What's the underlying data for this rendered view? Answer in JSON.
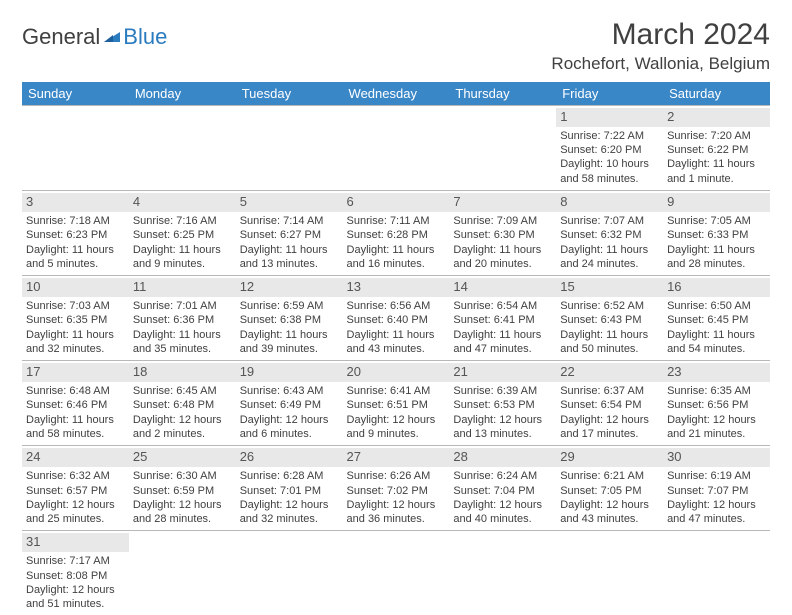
{
  "logo": {
    "part1": "General",
    "part2": "Blue"
  },
  "title": "March 2024",
  "subtitle": "Rochefort, Wallonia, Belgium",
  "styling": {
    "header_bg": "#3a87c8",
    "header_text": "#ffffff",
    "daynum_bg": "#e8e8e8",
    "cell_border": "#b8b8b8",
    "body_text": "#404040",
    "logo_accent": "#2b7bbf",
    "title_fontsize": 30,
    "subtitle_fontsize": 17,
    "cell_fontsize": 11,
    "daynum_fontsize": 13
  },
  "day_headers": [
    "Sunday",
    "Monday",
    "Tuesday",
    "Wednesday",
    "Thursday",
    "Friday",
    "Saturday"
  ],
  "weeks": [
    [
      null,
      null,
      null,
      null,
      null,
      {
        "n": "1",
        "sr": "Sunrise: 7:22 AM",
        "ss": "Sunset: 6:20 PM",
        "d1": "Daylight: 10 hours",
        "d2": "and 58 minutes."
      },
      {
        "n": "2",
        "sr": "Sunrise: 7:20 AM",
        "ss": "Sunset: 6:22 PM",
        "d1": "Daylight: 11 hours",
        "d2": "and 1 minute."
      }
    ],
    [
      {
        "n": "3",
        "sr": "Sunrise: 7:18 AM",
        "ss": "Sunset: 6:23 PM",
        "d1": "Daylight: 11 hours",
        "d2": "and 5 minutes."
      },
      {
        "n": "4",
        "sr": "Sunrise: 7:16 AM",
        "ss": "Sunset: 6:25 PM",
        "d1": "Daylight: 11 hours",
        "d2": "and 9 minutes."
      },
      {
        "n": "5",
        "sr": "Sunrise: 7:14 AM",
        "ss": "Sunset: 6:27 PM",
        "d1": "Daylight: 11 hours",
        "d2": "and 13 minutes."
      },
      {
        "n": "6",
        "sr": "Sunrise: 7:11 AM",
        "ss": "Sunset: 6:28 PM",
        "d1": "Daylight: 11 hours",
        "d2": "and 16 minutes."
      },
      {
        "n": "7",
        "sr": "Sunrise: 7:09 AM",
        "ss": "Sunset: 6:30 PM",
        "d1": "Daylight: 11 hours",
        "d2": "and 20 minutes."
      },
      {
        "n": "8",
        "sr": "Sunrise: 7:07 AM",
        "ss": "Sunset: 6:32 PM",
        "d1": "Daylight: 11 hours",
        "d2": "and 24 minutes."
      },
      {
        "n": "9",
        "sr": "Sunrise: 7:05 AM",
        "ss": "Sunset: 6:33 PM",
        "d1": "Daylight: 11 hours",
        "d2": "and 28 minutes."
      }
    ],
    [
      {
        "n": "10",
        "sr": "Sunrise: 7:03 AM",
        "ss": "Sunset: 6:35 PM",
        "d1": "Daylight: 11 hours",
        "d2": "and 32 minutes."
      },
      {
        "n": "11",
        "sr": "Sunrise: 7:01 AM",
        "ss": "Sunset: 6:36 PM",
        "d1": "Daylight: 11 hours",
        "d2": "and 35 minutes."
      },
      {
        "n": "12",
        "sr": "Sunrise: 6:59 AM",
        "ss": "Sunset: 6:38 PM",
        "d1": "Daylight: 11 hours",
        "d2": "and 39 minutes."
      },
      {
        "n": "13",
        "sr": "Sunrise: 6:56 AM",
        "ss": "Sunset: 6:40 PM",
        "d1": "Daylight: 11 hours",
        "d2": "and 43 minutes."
      },
      {
        "n": "14",
        "sr": "Sunrise: 6:54 AM",
        "ss": "Sunset: 6:41 PM",
        "d1": "Daylight: 11 hours",
        "d2": "and 47 minutes."
      },
      {
        "n": "15",
        "sr": "Sunrise: 6:52 AM",
        "ss": "Sunset: 6:43 PM",
        "d1": "Daylight: 11 hours",
        "d2": "and 50 minutes."
      },
      {
        "n": "16",
        "sr": "Sunrise: 6:50 AM",
        "ss": "Sunset: 6:45 PM",
        "d1": "Daylight: 11 hours",
        "d2": "and 54 minutes."
      }
    ],
    [
      {
        "n": "17",
        "sr": "Sunrise: 6:48 AM",
        "ss": "Sunset: 6:46 PM",
        "d1": "Daylight: 11 hours",
        "d2": "and 58 minutes."
      },
      {
        "n": "18",
        "sr": "Sunrise: 6:45 AM",
        "ss": "Sunset: 6:48 PM",
        "d1": "Daylight: 12 hours",
        "d2": "and 2 minutes."
      },
      {
        "n": "19",
        "sr": "Sunrise: 6:43 AM",
        "ss": "Sunset: 6:49 PM",
        "d1": "Daylight: 12 hours",
        "d2": "and 6 minutes."
      },
      {
        "n": "20",
        "sr": "Sunrise: 6:41 AM",
        "ss": "Sunset: 6:51 PM",
        "d1": "Daylight: 12 hours",
        "d2": "and 9 minutes."
      },
      {
        "n": "21",
        "sr": "Sunrise: 6:39 AM",
        "ss": "Sunset: 6:53 PM",
        "d1": "Daylight: 12 hours",
        "d2": "and 13 minutes."
      },
      {
        "n": "22",
        "sr": "Sunrise: 6:37 AM",
        "ss": "Sunset: 6:54 PM",
        "d1": "Daylight: 12 hours",
        "d2": "and 17 minutes."
      },
      {
        "n": "23",
        "sr": "Sunrise: 6:35 AM",
        "ss": "Sunset: 6:56 PM",
        "d1": "Daylight: 12 hours",
        "d2": "and 21 minutes."
      }
    ],
    [
      {
        "n": "24",
        "sr": "Sunrise: 6:32 AM",
        "ss": "Sunset: 6:57 PM",
        "d1": "Daylight: 12 hours",
        "d2": "and 25 minutes."
      },
      {
        "n": "25",
        "sr": "Sunrise: 6:30 AM",
        "ss": "Sunset: 6:59 PM",
        "d1": "Daylight: 12 hours",
        "d2": "and 28 minutes."
      },
      {
        "n": "26",
        "sr": "Sunrise: 6:28 AM",
        "ss": "Sunset: 7:01 PM",
        "d1": "Daylight: 12 hours",
        "d2": "and 32 minutes."
      },
      {
        "n": "27",
        "sr": "Sunrise: 6:26 AM",
        "ss": "Sunset: 7:02 PM",
        "d1": "Daylight: 12 hours",
        "d2": "and 36 minutes."
      },
      {
        "n": "28",
        "sr": "Sunrise: 6:24 AM",
        "ss": "Sunset: 7:04 PM",
        "d1": "Daylight: 12 hours",
        "d2": "and 40 minutes."
      },
      {
        "n": "29",
        "sr": "Sunrise: 6:21 AM",
        "ss": "Sunset: 7:05 PM",
        "d1": "Daylight: 12 hours",
        "d2": "and 43 minutes."
      },
      {
        "n": "30",
        "sr": "Sunrise: 6:19 AM",
        "ss": "Sunset: 7:07 PM",
        "d1": "Daylight: 12 hours",
        "d2": "and 47 minutes."
      }
    ],
    [
      {
        "n": "31",
        "sr": "Sunrise: 7:17 AM",
        "ss": "Sunset: 8:08 PM",
        "d1": "Daylight: 12 hours",
        "d2": "and 51 minutes."
      },
      null,
      null,
      null,
      null,
      null,
      null
    ]
  ]
}
